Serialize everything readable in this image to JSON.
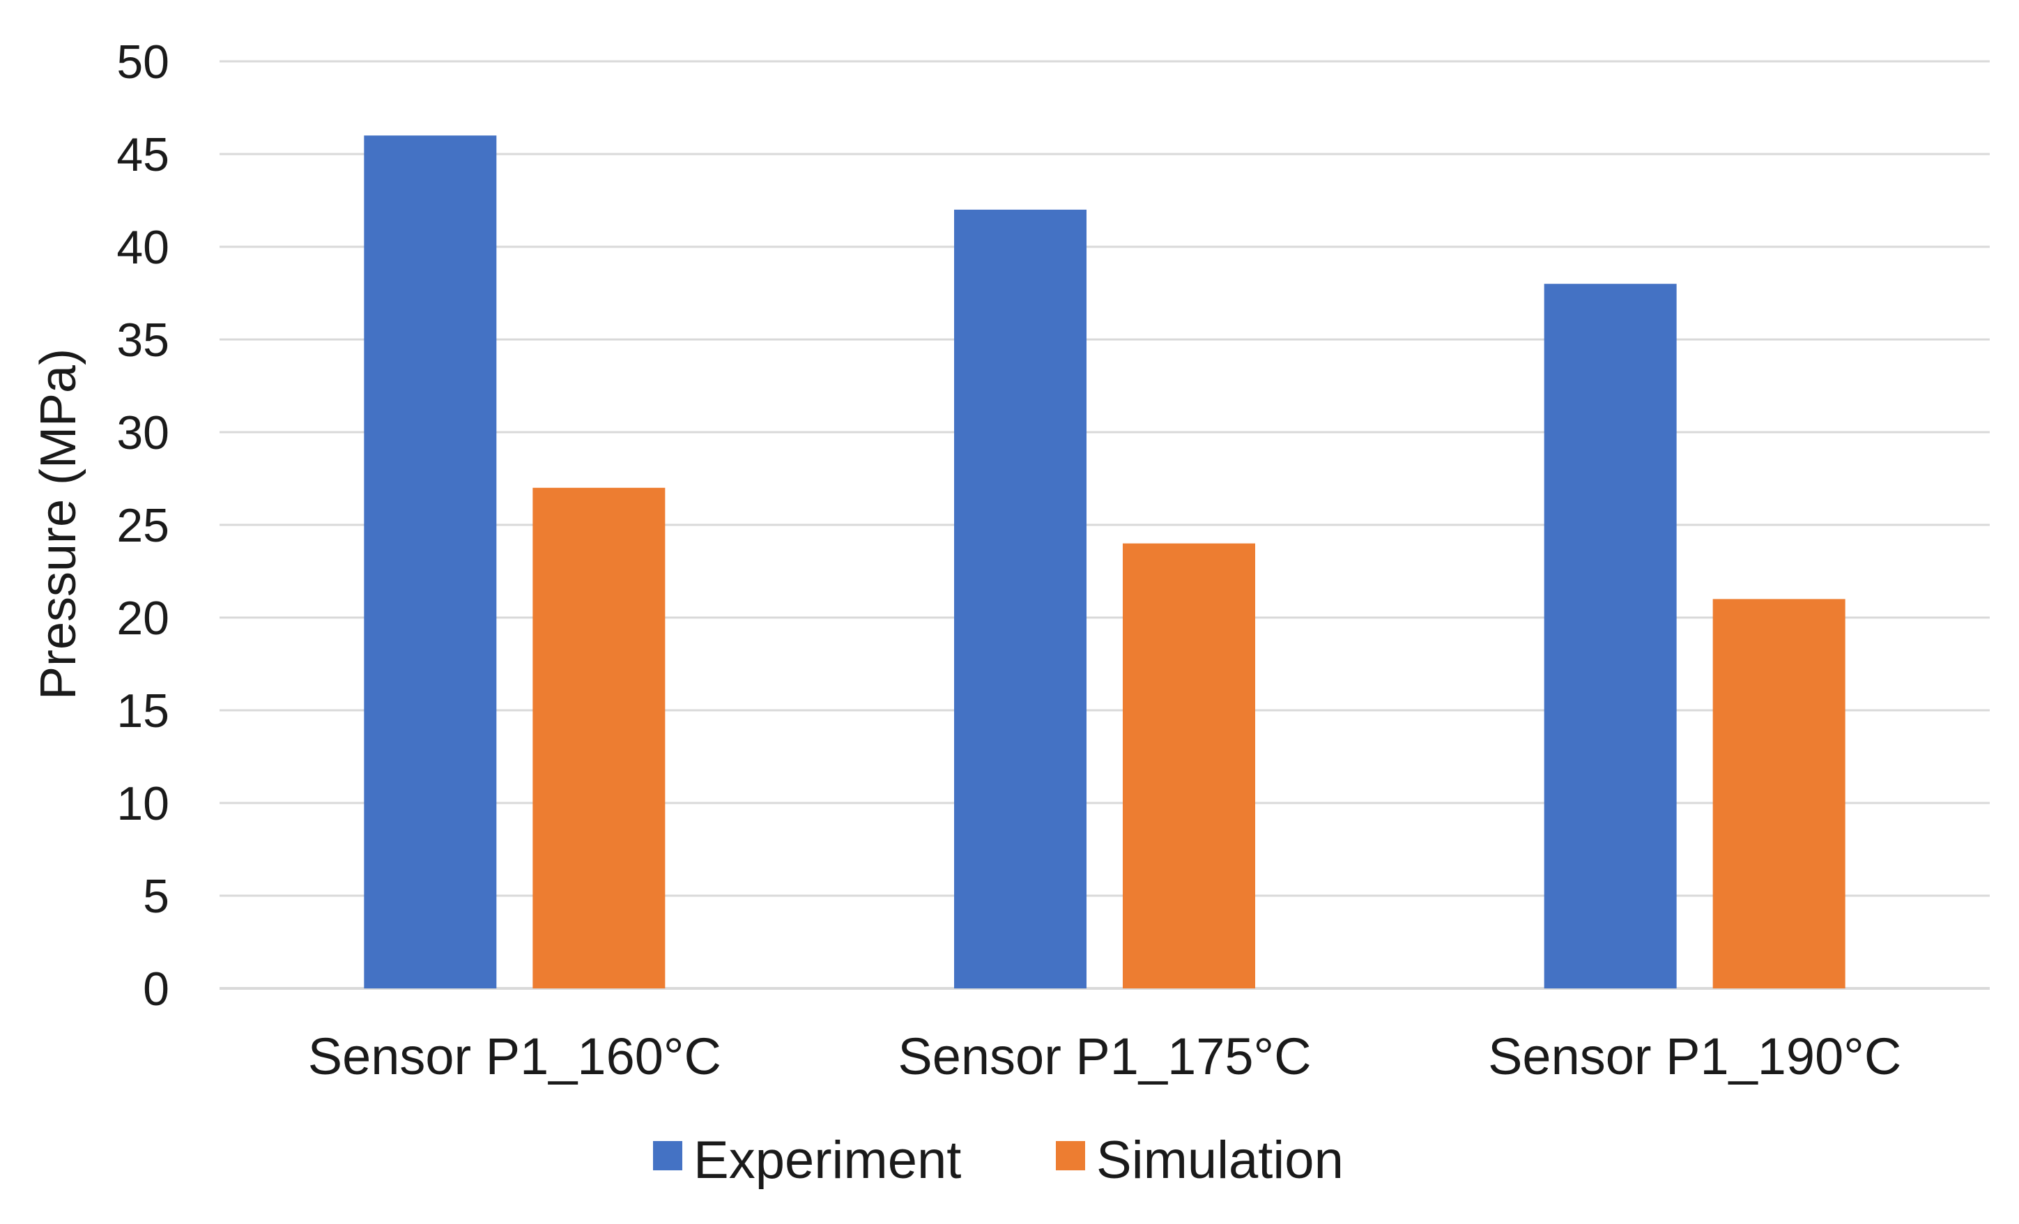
{
  "chart_data": {
    "type": "bar",
    "title": "",
    "xlabel": "",
    "ylabel": "Pressure (MPa)",
    "ylim": [
      0,
      50
    ],
    "ytick_step": 5,
    "grid": true,
    "legend_position": "bottom-center",
    "categories": [
      "Sensor P1_160°C",
      "Sensor P1_175°C",
      "Sensor P1_190°C"
    ],
    "series": [
      {
        "name": "Experiment",
        "color": "#4472C4",
        "values": [
          46,
          42,
          38
        ]
      },
      {
        "name": "Simulation",
        "color": "#ED7D31",
        "values": [
          27,
          24,
          21
        ]
      }
    ]
  }
}
